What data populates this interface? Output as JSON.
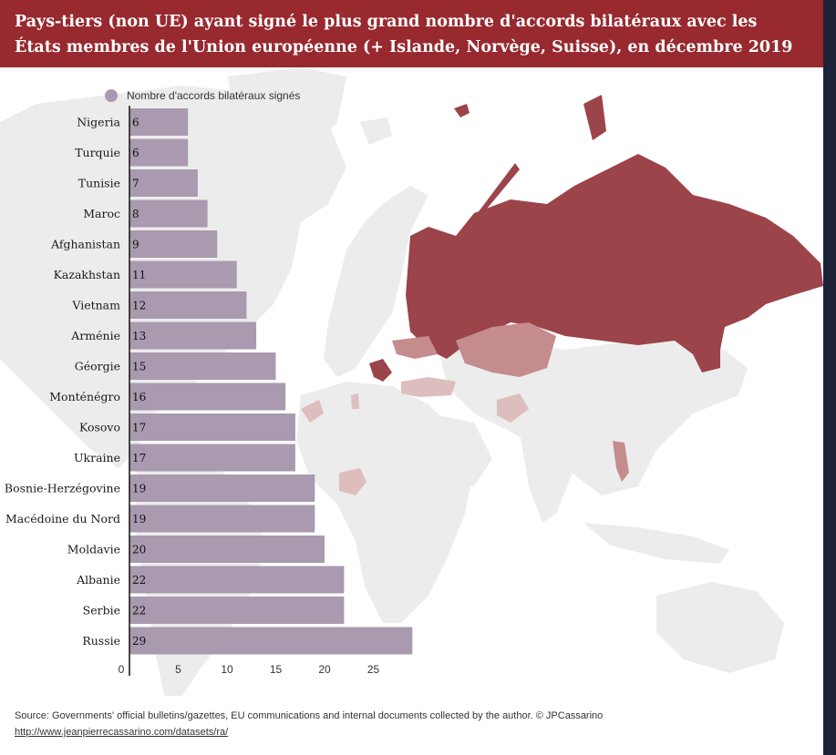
{
  "header": {
    "title": "Pays-tiers (non UE) ayant signé le plus grand nombre d'accords bilatéraux avec les États membres de l'Union européenne (+ Islande, Norvège, Suisse), en décembre 2019"
  },
  "colors": {
    "header_bg": "#97292f",
    "bar": "#a99aaf",
    "map_land": "#ececec",
    "map_high": "#9b444a",
    "map_mid": "#c58c8e",
    "map_low": "#ddbdbe"
  },
  "chart_data": {
    "type": "bar",
    "orientation": "horizontal",
    "title": "Pays-tiers (non UE) ayant signé le plus grand nombre d'accords bilatéraux avec les États membres de l'Union européenne (+ Islande, Norvège, Suisse), en décembre 2019",
    "categories": [
      "Nigeria",
      "Turquie",
      "Tunisie",
      "Maroc",
      "Afghanistan",
      "Kazakhstan",
      "Vietnam",
      "Arménie",
      "Géorgie",
      "Monténégro",
      "Kosovo",
      "Ukraine",
      "Bosnie-Herzégovine",
      "Macédoine du Nord",
      "Moldavie",
      "Albanie",
      "Serbie",
      "Russie"
    ],
    "series": [
      {
        "name": "Nombre d'accords bilatéraux signés",
        "values": [
          6,
          6,
          7,
          8,
          9,
          11,
          12,
          13,
          15,
          16,
          17,
          17,
          19,
          19,
          20,
          22,
          22,
          29
        ]
      }
    ],
    "xlim": [
      0,
      29
    ],
    "xticks": [
      0,
      5,
      10,
      15,
      20,
      25
    ],
    "legend_position": "top-left",
    "grid": false
  },
  "footer": {
    "source": "Source: Governments' official bulletins/gazettes, EU communications and internal documents collected by the author. © JPCassarino",
    "link": "http://www.jeanpierrecassarino.com/datasets/ra/"
  }
}
